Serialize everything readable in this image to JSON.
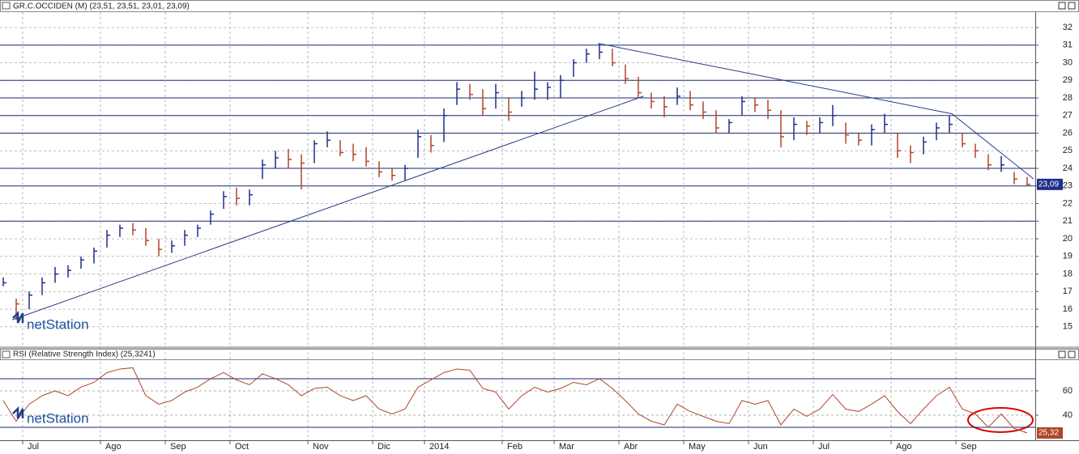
{
  "chart_data": [
    {
      "type": "ohlc",
      "title": "GR.C.OCCIDEN (M) (23,51, 23,51, 23,01, 23,09)",
      "watermark": "netStation",
      "categories": [
        null,
        null,
        "Jul",
        null,
        null,
        null,
        null,
        null,
        "Ago",
        null,
        null,
        null,
        null,
        "Sep",
        null,
        null,
        null,
        null,
        "Oct",
        null,
        null,
        null,
        null,
        null,
        "Nov",
        null,
        null,
        null,
        null,
        "Dic",
        null,
        null,
        null,
        "2014",
        null,
        null,
        null,
        null,
        null,
        "Feb",
        null,
        null,
        null,
        "Mar",
        null,
        null,
        null,
        null,
        "Abr",
        null,
        null,
        null,
        null,
        "May",
        null,
        null,
        null,
        null,
        "Jun",
        null,
        null,
        null,
        null,
        "Jul",
        null,
        null,
        null,
        null,
        null,
        "Ago",
        null,
        null,
        null,
        null,
        "Sep",
        null,
        null,
        null,
        null,
        null
      ],
      "high": [
        17.8,
        16.6,
        17.0,
        17.8,
        18.4,
        18.5,
        19.0,
        19.5,
        20.5,
        20.8,
        20.9,
        20.6,
        20.0,
        19.9,
        20.5,
        20.8,
        21.6,
        22.7,
        22.9,
        22.8,
        24.5,
        25.0,
        25.1,
        24.8,
        25.6,
        26.1,
        25.6,
        25.4,
        25.2,
        24.4,
        24.0,
        24.2,
        26.2,
        25.9,
        27.4,
        28.9,
        28.8,
        28.5,
        28.8,
        28.0,
        28.4,
        29.5,
        28.9,
        29.3,
        30.2,
        30.8,
        31.1,
        30.8,
        29.9,
        29.2,
        28.3,
        28.1,
        28.6,
        28.4,
        27.8,
        27.3,
        26.8,
        28.1,
        28.0,
        27.9,
        27.3,
        26.9,
        26.7,
        26.9,
        27.6,
        26.6,
        26.0,
        26.5,
        27.1,
        26.0,
        25.3,
        25.8,
        26.6,
        27.0,
        26.0,
        25.4,
        24.8,
        24.7,
        23.8,
        23.51
      ],
      "low": [
        17.3,
        15.4,
        16.0,
        16.8,
        17.5,
        17.8,
        18.3,
        18.6,
        19.5,
        20.1,
        20.2,
        19.6,
        19.0,
        19.2,
        19.6,
        20.1,
        20.8,
        21.7,
        21.9,
        21.9,
        23.4,
        24.0,
        24.0,
        22.8,
        24.3,
        25.2,
        24.7,
        24.4,
        24.1,
        23.5,
        23.3,
        23.3,
        24.6,
        24.9,
        25.5,
        27.6,
        27.9,
        27.0,
        27.4,
        26.7,
        27.5,
        27.9,
        27.9,
        28.0,
        29.2,
        30.0,
        30.2,
        29.8,
        28.8,
        28.0,
        27.4,
        26.9,
        27.6,
        27.3,
        26.8,
        26.0,
        26.0,
        27.0,
        27.2,
        26.8,
        25.2,
        25.6,
        25.9,
        26.0,
        26.4,
        25.4,
        25.3,
        25.3,
        26.0,
        24.6,
        24.3,
        24.8,
        25.6,
        26.0,
        25.2,
        24.6,
        23.9,
        23.8,
        23.1,
        23.01
      ],
      "close": [
        17.5,
        16.3,
        16.8,
        17.5,
        18.0,
        18.2,
        18.8,
        19.3,
        20.2,
        20.6,
        20.5,
        19.9,
        19.4,
        19.6,
        20.2,
        20.6,
        21.4,
        22.4,
        22.3,
        22.5,
        24.2,
        24.6,
        24.5,
        24.3,
        25.4,
        25.6,
        24.9,
        24.8,
        24.4,
        23.8,
        23.6,
        24.0,
        25.8,
        25.3,
        27.0,
        28.5,
        28.2,
        27.4,
        28.3,
        27.2,
        28.0,
        28.5,
        28.6,
        29.0,
        30.0,
        30.5,
        30.6,
        30.0,
        29.1,
        28.3,
        27.8,
        27.5,
        28.1,
        27.6,
        27.2,
        26.3,
        26.6,
        27.8,
        27.6,
        27.3,
        25.8,
        26.5,
        26.4,
        26.6,
        27.0,
        25.9,
        25.6,
        26.2,
        26.5,
        25.0,
        24.9,
        25.5,
        26.3,
        26.5,
        25.4,
        25.0,
        24.2,
        24.2,
        23.4,
        23.09
      ],
      "up_color": "#1f2f8a",
      "down_color": "#b0462a",
      "ylim": [
        13.98,
        32.83
      ],
      "yticks": [
        15,
        16,
        17,
        18,
        19,
        20,
        21,
        22,
        23,
        24,
        25,
        26,
        27,
        28,
        29,
        30,
        31,
        32
      ],
      "levels": [
        31,
        29,
        28,
        27,
        26,
        24,
        23,
        21
      ],
      "trendlines": [
        {
          "x": [
            0.7,
            49.4
          ],
          "y": [
            15.4,
            28.1
          ]
        },
        {
          "x": [
            45.9,
            73.2,
            79.5
          ],
          "y": [
            31.1,
            27.1,
            23.4
          ]
        }
      ],
      "last_label": {
        "value": 23.09,
        "label": "23,09"
      }
    },
    {
      "type": "line",
      "title": "RSI (Relative Strength Index) (25,3241)",
      "watermark": "netStation",
      "color": "#b0462a",
      "values": [
        52,
        35,
        49,
        56,
        60,
        56,
        63,
        67,
        75,
        78,
        79,
        56,
        49,
        52,
        59,
        63,
        70,
        75,
        69,
        65,
        74,
        70,
        65,
        56,
        62,
        63,
        56,
        52,
        56,
        45,
        41,
        45,
        63,
        69,
        75,
        78,
        77,
        62,
        59,
        45,
        56,
        63,
        59,
        62,
        67,
        65,
        70,
        62,
        52,
        41,
        35,
        32,
        49,
        43,
        39,
        35,
        33,
        52,
        49,
        52,
        32,
        45,
        39,
        45,
        57,
        45,
        43,
        49,
        56,
        43,
        33,
        45,
        56,
        63,
        45,
        41,
        30,
        41,
        29,
        25.32
      ],
      "ylim": [
        20,
        85.3
      ],
      "yticks": [
        40,
        60
      ],
      "levels": [
        30,
        70
      ],
      "last_label": {
        "value": 25.32,
        "label": "25,32"
      }
    }
  ]
}
